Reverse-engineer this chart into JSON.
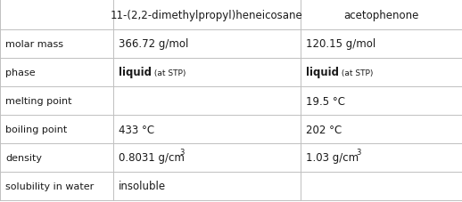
{
  "col_headers": [
    "",
    "11-(2,2-dimethylpropyl)heneicosane",
    "acetophenone"
  ],
  "rows": [
    {
      "label": "molar mass",
      "col1": "366.72 g/mol",
      "col2": "120.15 g/mol",
      "type": "plain"
    },
    {
      "label": "phase",
      "col1_main": "liquid",
      "col1_sub": " (at STP)",
      "col2_main": "liquid",
      "col2_sub": " (at STP)",
      "type": "phase"
    },
    {
      "label": "melting point",
      "col1": "",
      "col2": "19.5 °C",
      "type": "plain"
    },
    {
      "label": "boiling point",
      "col1": "433 °C",
      "col2": "202 °C",
      "type": "plain"
    },
    {
      "label": "density",
      "col1_main": "0.8031 g/cm",
      "col1_exp": "3",
      "col2_main": "1.03 g/cm",
      "col2_exp": "3",
      "type": "density"
    },
    {
      "label": "solubility in water",
      "col1": "insoluble",
      "col2": "",
      "type": "plain"
    }
  ],
  "border_color": "#c0c0c0",
  "text_color": "#1a1a1a",
  "bg_color": "#ffffff",
  "fig_width": 5.18,
  "fig_height": 2.28,
  "dpi": 100
}
